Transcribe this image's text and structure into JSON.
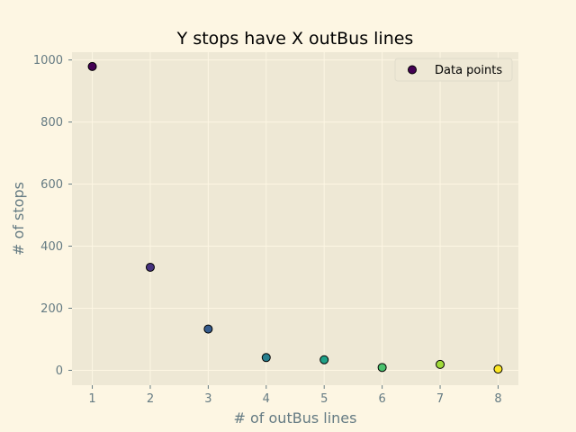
{
  "chart_data": {
    "type": "scatter",
    "title": "Y stops have X outBus lines",
    "xlabel": "# of outBus lines",
    "ylabel": "# of stops",
    "xlim": [
      0.65,
      8.35
    ],
    "ylim": [
      -48,
      1025
    ],
    "xticks": [
      1,
      2,
      3,
      4,
      5,
      6,
      7,
      8
    ],
    "yticks": [
      0,
      200,
      400,
      600,
      800,
      1000
    ],
    "grid": true,
    "legend_position": "top-right",
    "series": [
      {
        "name": "Data points",
        "x": [
          1,
          2,
          3,
          4,
          5,
          6,
          7,
          8
        ],
        "y": [
          979,
          332,
          133,
          41,
          34,
          9,
          19,
          4
        ],
        "colors": [
          "#440154",
          "#46327e",
          "#365c8d",
          "#277f8e",
          "#1fa187",
          "#4ac16d",
          "#a0da39",
          "#fde725"
        ]
      }
    ]
  },
  "colors": {
    "figure_background": "#fdf6e3",
    "plot_background": "#eee8d5",
    "grid": "#fdf6e3",
    "marker_edge": "#000000",
    "text": "#657b83"
  }
}
